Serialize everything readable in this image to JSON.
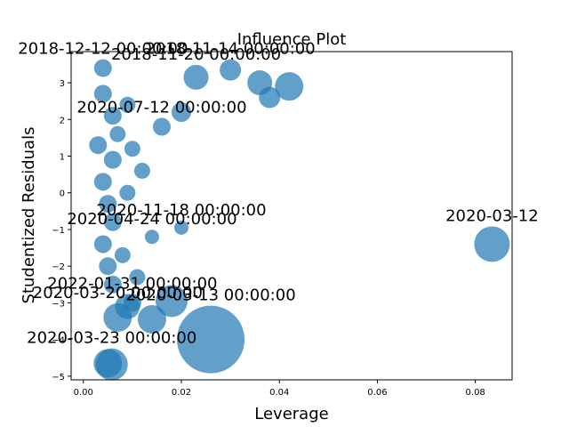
{
  "chart_data": {
    "type": "scatter",
    "title": "Influence Plot",
    "xlabel": "Leverage",
    "ylabel": "Studentized Residuals",
    "xlim": [
      -0.0025,
      0.0875
    ],
    "ylim": [
      -5.1,
      3.85
    ],
    "xticks": [
      0.0,
      0.02,
      0.04,
      0.06,
      0.08
    ],
    "xtick_labels": [
      "0.00",
      "0.02",
      "0.04",
      "0.06",
      "0.08"
    ],
    "yticks": [
      -5,
      -4,
      -3,
      -2,
      -1,
      0,
      1,
      2,
      3
    ],
    "ytick_labels": [
      "−5",
      "−4",
      "−3",
      "−2",
      "−1",
      "0",
      "1",
      "2",
      "3"
    ],
    "grid": false,
    "marker_color": "#1f77b4",
    "marker_alpha": 0.7,
    "points": [
      {
        "x": 0.0834,
        "y": -1.4,
        "size": 20,
        "label": "2020-03-12"
      },
      {
        "x": 0.026,
        "y": -4.0,
        "size": 38,
        "label": "2020-03-13 00:00:00"
      },
      {
        "x": 0.0058,
        "y": -4.68,
        "size": 18,
        "label": "2020-03-23 00:00:00"
      },
      {
        "x": 0.005,
        "y": -4.65,
        "size": 16
      },
      {
        "x": 0.007,
        "y": -3.4,
        "size": 16,
        "label": "2020-03-20 00:00:00"
      },
      {
        "x": 0.014,
        "y": -3.45,
        "size": 16
      },
      {
        "x": 0.009,
        "y": -3.1,
        "size": 14
      },
      {
        "x": 0.018,
        "y": -2.95,
        "size": 18
      },
      {
        "x": 0.004,
        "y": 3.4,
        "size": 10,
        "label": "2018-12-12 00:00:00"
      },
      {
        "x": 0.03,
        "y": 3.35,
        "size": 12,
        "label": "2018-11-14 00:00:00"
      },
      {
        "x": 0.023,
        "y": 3.15,
        "size": 14,
        "label": "2018-11-20 00:00:00"
      },
      {
        "x": 0.036,
        "y": 3.0,
        "size": 14
      },
      {
        "x": 0.042,
        "y": 2.9,
        "size": 16
      },
      {
        "x": 0.038,
        "y": 2.6,
        "size": 12
      },
      {
        "x": 0.02,
        "y": 2.2,
        "size": 11
      },
      {
        "x": 0.016,
        "y": 1.8,
        "size": 10,
        "label": "2020-07-12 00:00:00"
      },
      {
        "x": 0.004,
        "y": 2.7,
        "size": 10
      },
      {
        "x": 0.006,
        "y": 2.1,
        "size": 10
      },
      {
        "x": 0.003,
        "y": 1.3,
        "size": 10
      },
      {
        "x": 0.006,
        "y": 0.9,
        "size": 10
      },
      {
        "x": 0.004,
        "y": 0.3,
        "size": 10
      },
      {
        "x": 0.005,
        "y": -0.3,
        "size": 10
      },
      {
        "x": 0.006,
        "y": -0.8,
        "size": 10
      },
      {
        "x": 0.004,
        "y": -1.4,
        "size": 10
      },
      {
        "x": 0.005,
        "y": -2.0,
        "size": 10
      },
      {
        "x": 0.006,
        "y": -2.5,
        "size": 10
      },
      {
        "x": 0.014,
        "y": -1.2,
        "size": 8,
        "label": "2020-04-24 00:00:00"
      },
      {
        "x": 0.02,
        "y": -0.95,
        "size": 8,
        "label": "2020-11-18 00:00:00"
      },
      {
        "x": 0.01,
        "y": -3.0,
        "size": 10,
        "label": "2022-01-31 00:00:00"
      },
      {
        "x": 0.009,
        "y": 0.0,
        "size": 9
      },
      {
        "x": 0.012,
        "y": 0.6,
        "size": 9
      },
      {
        "x": 0.01,
        "y": 1.2,
        "size": 9
      },
      {
        "x": 0.008,
        "y": -1.7,
        "size": 9
      },
      {
        "x": 0.011,
        "y": -2.3,
        "size": 9
      },
      {
        "x": 0.007,
        "y": 1.6,
        "size": 9
      },
      {
        "x": 0.009,
        "y": 2.4,
        "size": 9
      }
    ]
  }
}
